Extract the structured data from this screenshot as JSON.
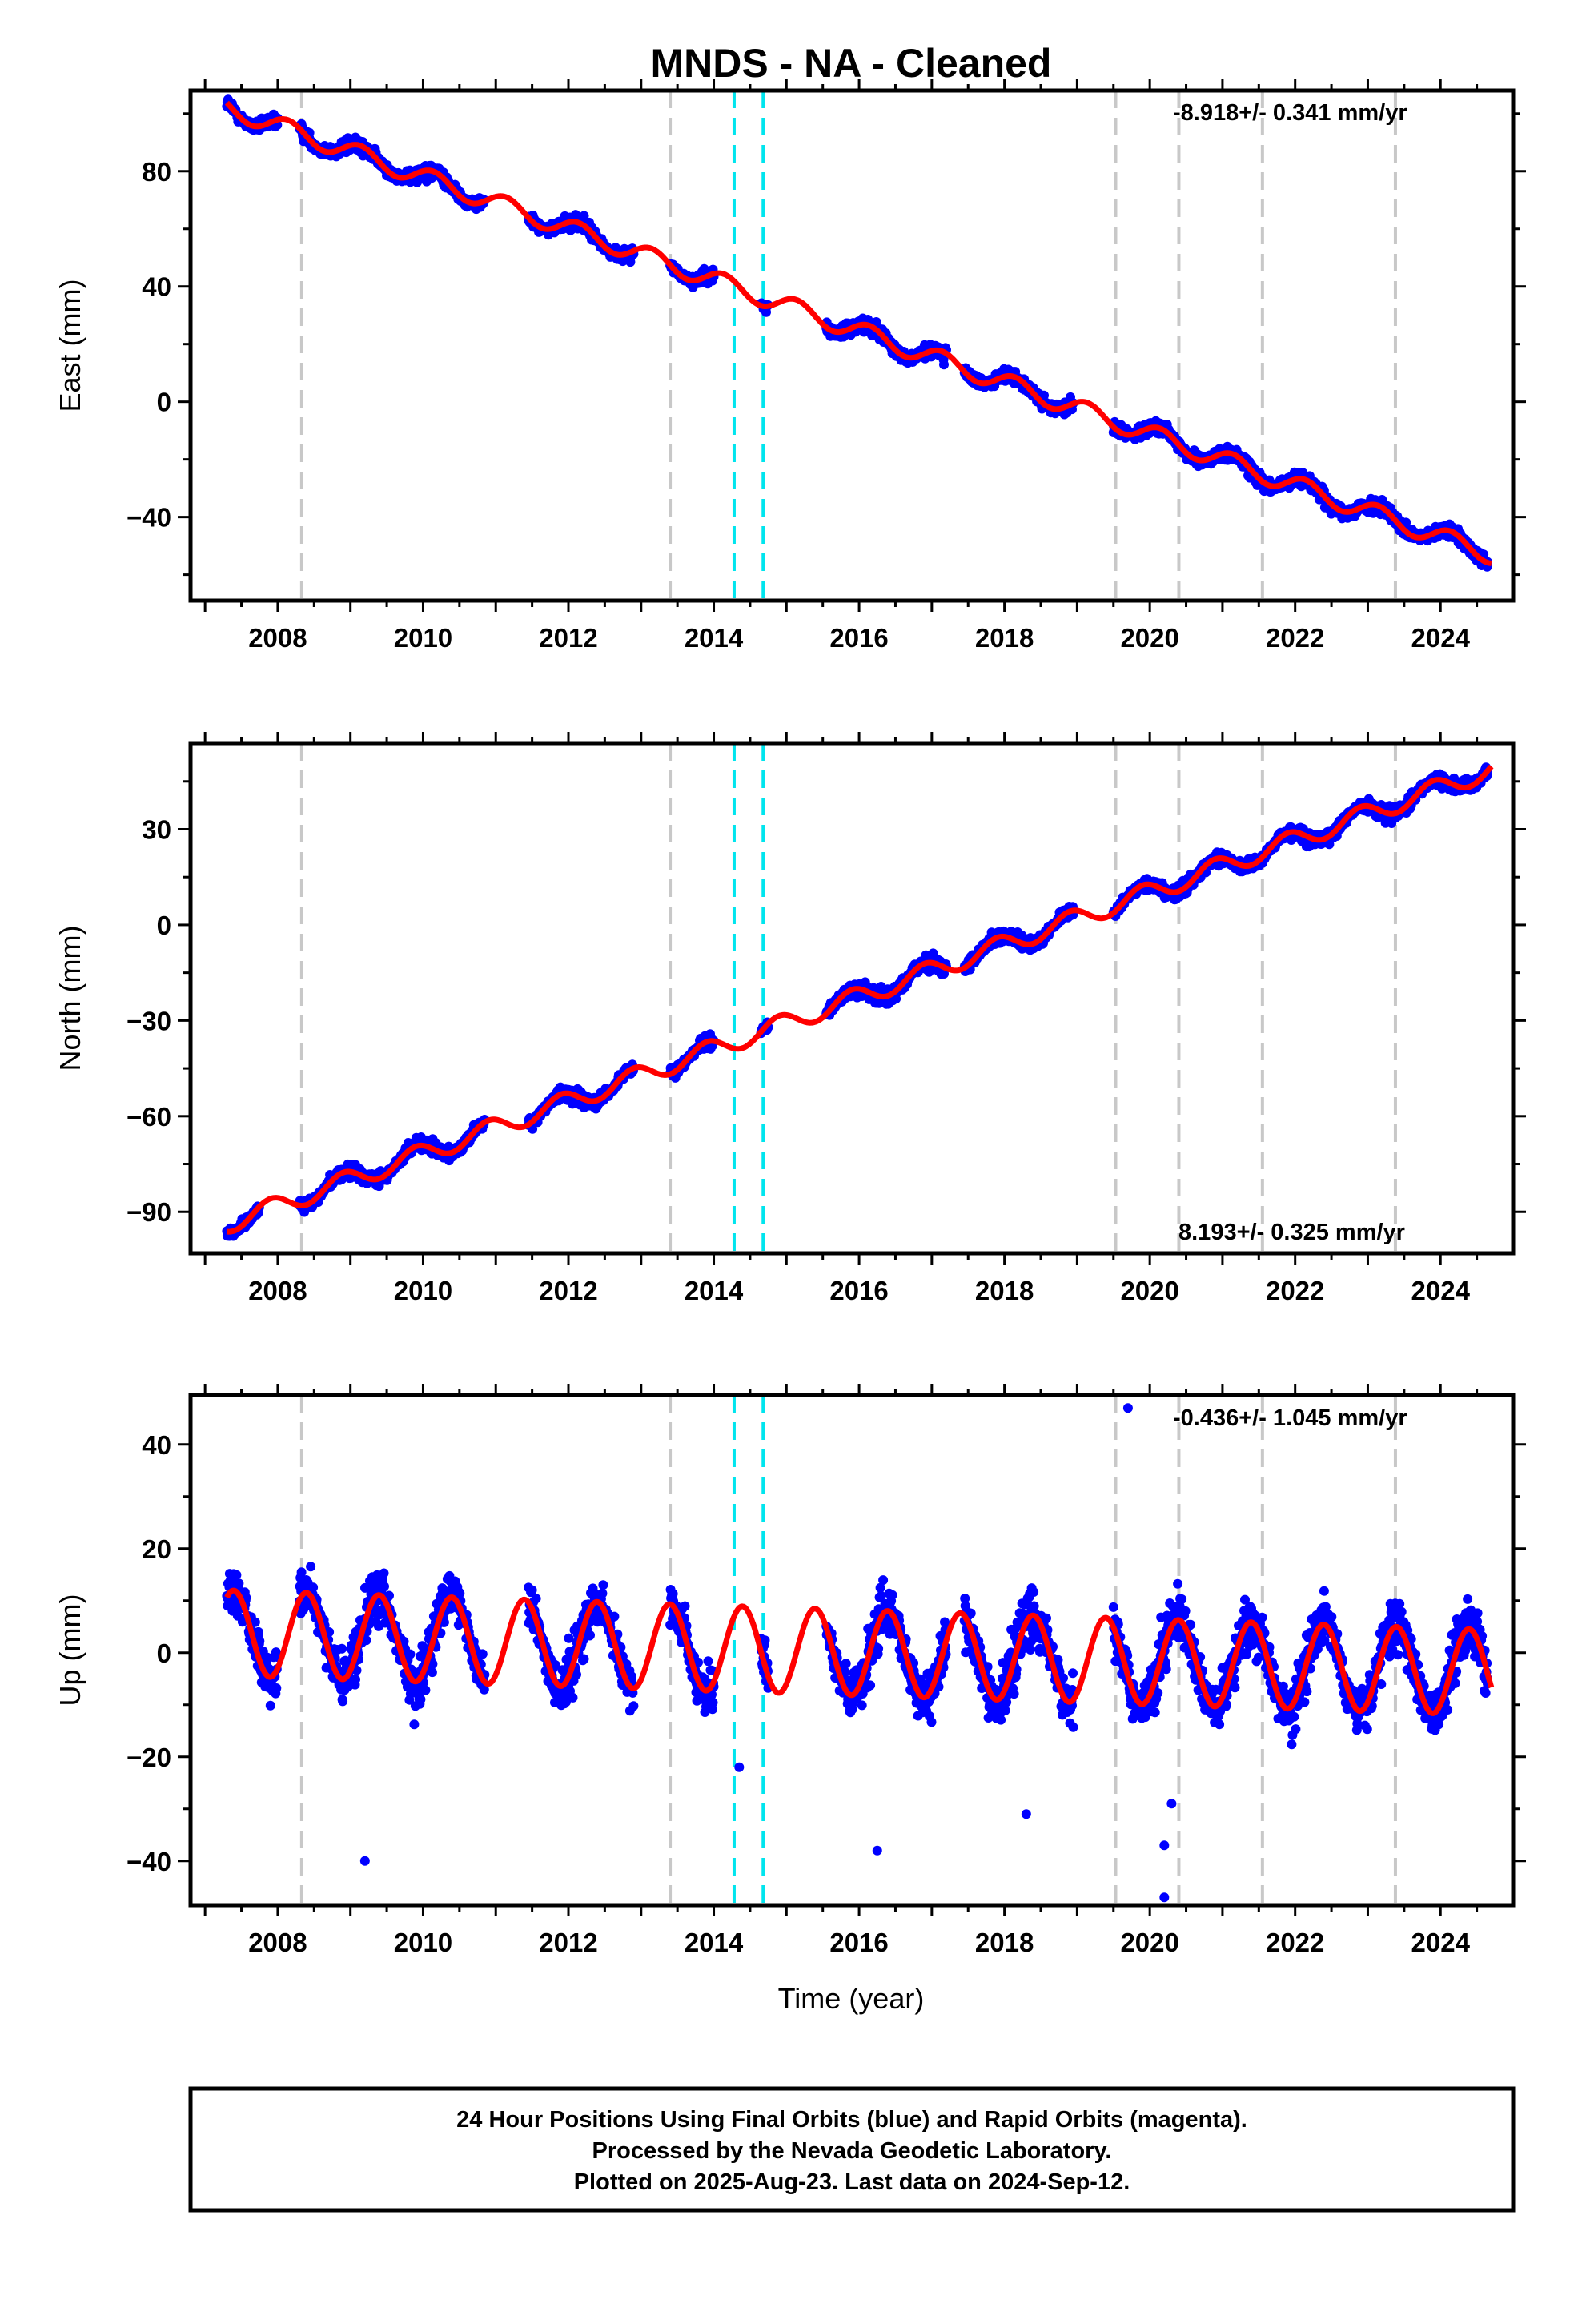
{
  "title": "MNDS  - NA - Cleaned",
  "x_axis_label": "Time (year)",
  "footer": {
    "line1": "24 Hour Positions Using Final Orbits (blue) and Rapid Orbits (magenta).",
    "line2": "Processed by the Nevada Geodetic Laboratory.",
    "line3": "Plotted on 2025-Aug-23. Last data on 2024-Sep-12."
  },
  "colors": {
    "data_points": "#0000ff",
    "model_fit": "#ff0000",
    "equipment_change_lines": "#c8c8c8",
    "event_lines": "#00e5ee"
  },
  "chart_data": [
    {
      "type": "scatter",
      "name": "east",
      "ylabel": "East (mm)",
      "rate_label": "-8.918+/- 0.341 mm/yr",
      "xlim": [
        2006.8,
        2025.0
      ],
      "ylim": [
        -69,
        108
      ],
      "xticks": [
        2008,
        2010,
        2012,
        2014,
        2016,
        2018,
        2020,
        2022,
        2024
      ],
      "yticks": [
        -40,
        0,
        40,
        80
      ],
      "gray_dashed_lines_x": [
        2008.33,
        2013.4,
        2019.53,
        2020.4,
        2021.55,
        2023.38
      ],
      "cyan_dashed_lines_x": [
        2014.28,
        2014.68
      ],
      "trend": {
        "rate": -8.918,
        "value_at_2016": 24.5
      },
      "seasonal": {
        "amplitude": 3.2,
        "phase": 0.7
      },
      "data_segments": [
        [
          2007.3,
          2008.0
        ],
        [
          2008.3,
          2010.85
        ],
        [
          2011.45,
          2012.9
        ],
        [
          2013.4,
          2014.0
        ],
        [
          2014.65,
          2014.75
        ],
        [
          2015.55,
          2017.2
        ],
        [
          2017.45,
          2018.95
        ],
        [
          2019.5,
          2024.65
        ]
      ],
      "noise_mm": 2.2
    },
    {
      "type": "scatter",
      "name": "north",
      "ylabel": "North (mm)",
      "rate_label": "8.193+/- 0.325 mm/yr",
      "xlim": [
        2006.8,
        2025.0
      ],
      "ylim": [
        -103,
        57
      ],
      "xticks": [
        2008,
        2010,
        2012,
        2014,
        2016,
        2018,
        2020,
        2022,
        2024
      ],
      "yticks": [
        -90,
        -60,
        -30,
        0,
        30
      ],
      "gray_dashed_lines_x": [
        2008.33,
        2013.4,
        2019.53,
        2020.4,
        2021.55,
        2023.38
      ],
      "cyan_dashed_lines_x": [
        2014.28,
        2014.68
      ],
      "trend": {
        "rate": 8.193,
        "value_at_2016": -22.5
      },
      "seasonal": {
        "amplitude": 3.0,
        "phase": 2.2
      },
      "data_segments": [
        [
          2007.3,
          2007.75
        ],
        [
          2008.3,
          2010.85
        ],
        [
          2011.45,
          2012.9
        ],
        [
          2013.4,
          2014.0
        ],
        [
          2014.65,
          2014.75
        ],
        [
          2015.55,
          2017.2
        ],
        [
          2017.45,
          2018.95
        ],
        [
          2019.5,
          2024.65
        ]
      ],
      "noise_mm": 2.0
    },
    {
      "type": "scatter",
      "name": "up",
      "ylabel": "Up (mm)",
      "rate_label": "-0.436+/- 1.045 mm/yr",
      "xlim": [
        2006.8,
        2025.0
      ],
      "ylim": [
        -48.5,
        49.5
      ],
      "xticks": [
        2008,
        2010,
        2012,
        2014,
        2016,
        2018,
        2020,
        2022,
        2024
      ],
      "yticks": [
        -40,
        -20,
        0,
        20,
        40
      ],
      "gray_dashed_lines_x": [
        2008.33,
        2013.4,
        2019.53,
        2020.4,
        2021.55,
        2023.38
      ],
      "cyan_dashed_lines_x": [
        2014.28,
        2014.68
      ],
      "trend": {
        "rate": -0.436,
        "value_at_2016": 0
      },
      "seasonal": {
        "amplitude": 8.2,
        "phase": -0.9
      },
      "data_segments": [
        [
          2007.3,
          2008.0
        ],
        [
          2008.3,
          2010.85
        ],
        [
          2011.45,
          2012.9
        ],
        [
          2013.4,
          2014.0
        ],
        [
          2014.65,
          2014.75
        ],
        [
          2015.55,
          2017.2
        ],
        [
          2017.45,
          2018.95
        ],
        [
          2019.5,
          2024.65
        ]
      ],
      "noise_mm": 4.5,
      "outliers": [
        [
          2019.7,
          47
        ],
        [
          2020.2,
          -47
        ],
        [
          2020.2,
          -37
        ],
        [
          2016.25,
          -38
        ],
        [
          2009.2,
          -40
        ],
        [
          2014.35,
          -22
        ],
        [
          2018.3,
          -31
        ],
        [
          2020.3,
          -29
        ]
      ]
    }
  ]
}
